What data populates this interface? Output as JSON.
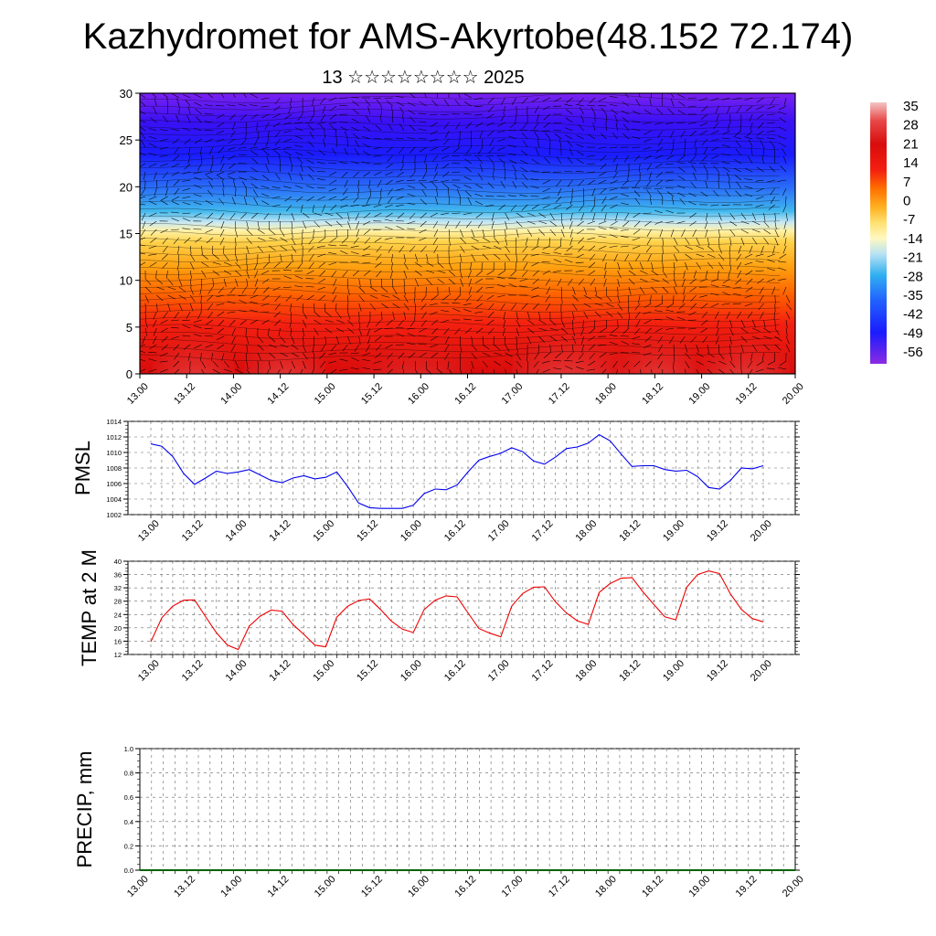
{
  "header": {
    "title": "Kazhydromet for AMS-Akyrtobe(48.152 72.174)",
    "subtitle": "13 ☆☆☆☆☆☆☆☆ 2025"
  },
  "time_ticks": [
    "13.00",
    "13.12",
    "14.00",
    "14.12",
    "15.00",
    "15.12",
    "16.00",
    "16.12",
    "17.00",
    "17.12",
    "18.00",
    "18.12",
    "19.00",
    "19.12",
    "20.00"
  ],
  "colorbar": {
    "labels": [
      "35",
      "28",
      "21",
      "14",
      "7",
      "0",
      "-7",
      "-14",
      "-21",
      "-28",
      "-35",
      "-42",
      "-49",
      "-56"
    ],
    "stops": [
      "#8b2be2",
      "#3b00f0",
      "#1020ff",
      "#1a78ff",
      "#2ab4f0",
      "#aee0f8",
      "#fff7b0",
      "#ffd040",
      "#ff9a00",
      "#ff5a00",
      "#f01010",
      "#d80c0c",
      "#f06060",
      "#f4c4c4"
    ]
  },
  "chart_data": [
    {
      "type": "heatmap",
      "title": "",
      "xlabel": "",
      "ylabel": "",
      "ylim": [
        0,
        30
      ],
      "yticks": [
        "0",
        "5",
        "10",
        "15",
        "20",
        "25",
        "30"
      ],
      "categories": [
        "13.00",
        "13.12",
        "14.00",
        "14.12",
        "15.00",
        "15.12",
        "16.00",
        "16.12",
        "17.00",
        "17.12",
        "18.00",
        "18.12",
        "19.00",
        "19.12",
        "20.00"
      ],
      "description_values": "temperature field vs level with wind barbs; colours from -56 (top) to 35 (near surface)",
      "colormap": [
        "#8b2be2",
        "#3b00f0",
        "#1020ff",
        "#1a78ff",
        "#2ab4f0",
        "#aee0f8",
        "#fff7b0",
        "#ffd040",
        "#ff9a00",
        "#ff5a00",
        "#f01010",
        "#d80c0c",
        "#f06060",
        "#f4c4c4"
      ]
    },
    {
      "type": "line",
      "ylabel": "PMSL",
      "ylim": [
        1002,
        1014
      ],
      "yticks": [
        "1002",
        "1004",
        "1006",
        "1008",
        "1010",
        "1012",
        "1014"
      ],
      "series": [
        {
          "color": "#0000ee",
          "values": [
            1011.1,
            1010.8,
            1009.5,
            1007.3,
            1005.9,
            1006.7,
            1007.6,
            1007.3,
            1007.5,
            1007.8,
            1007.1,
            1006.4,
            1006.1,
            1006.7,
            1007.0,
            1006.6,
            1006.8,
            1007.5,
            1005.6,
            1003.5,
            1002.9,
            1002.8,
            1002.8,
            1002.8,
            1003.2,
            1004.7,
            1005.3,
            1005.2,
            1005.8,
            1007.5,
            1009.0,
            1009.5,
            1009.9,
            1010.6,
            1010.1,
            1008.9,
            1008.5,
            1009.4,
            1010.5,
            1010.7,
            1011.2,
            1012.3,
            1011.5,
            1009.8,
            1008.2,
            1008.3,
            1008.3,
            1007.8,
            1007.6,
            1007.7,
            1006.9,
            1005.5,
            1005.3,
            1006.4,
            1008.0,
            1007.9,
            1008.3
          ]
        }
      ]
    },
    {
      "type": "line",
      "ylabel": "TEMP at 2 M",
      "ylim": [
        12,
        40
      ],
      "yticks": [
        "12",
        "16",
        "20",
        "24",
        "28",
        "32",
        "36",
        "40"
      ],
      "series": [
        {
          "color": "#ee0000",
          "values": [
            15.8,
            23.0,
            26.5,
            28.3,
            28.4,
            23.4,
            18.5,
            14.8,
            13.5,
            20.5,
            23.5,
            25.3,
            25.0,
            21.0,
            18.0,
            14.8,
            14.3,
            23.2,
            26.5,
            28.2,
            28.7,
            25.5,
            22.0,
            19.6,
            18.6,
            25.5,
            28.3,
            29.6,
            29.3,
            24.5,
            19.8,
            18.4,
            17.3,
            26.5,
            30.3,
            32.2,
            32.3,
            27.8,
            24.5,
            22.1,
            21.0,
            30.6,
            33.3,
            34.9,
            35.1,
            30.8,
            27.0,
            23.3,
            22.4,
            32.2,
            36.0,
            37.1,
            36.3,
            30.2,
            25.5,
            22.8,
            21.8
          ]
        }
      ]
    },
    {
      "type": "line",
      "ylabel": "PRECIP, mm",
      "ylim": [
        0,
        1
      ],
      "yticks": [
        "0.0",
        "0.2",
        "0.4",
        "0.6",
        "0.8",
        "1.0"
      ],
      "series": [
        {
          "color": "#006400",
          "values": [
            0,
            0,
            0,
            0,
            0,
            0,
            0,
            0,
            0,
            0,
            0,
            0,
            0,
            0,
            0,
            0,
            0,
            0,
            0,
            0,
            0,
            0,
            0,
            0,
            0,
            0,
            0,
            0,
            0,
            0,
            0,
            0,
            0,
            0,
            0,
            0,
            0,
            0,
            0,
            0,
            0,
            0,
            0,
            0,
            0,
            0,
            0,
            0,
            0,
            0,
            0,
            0,
            0,
            0,
            0,
            0,
            0
          ]
        }
      ]
    }
  ]
}
